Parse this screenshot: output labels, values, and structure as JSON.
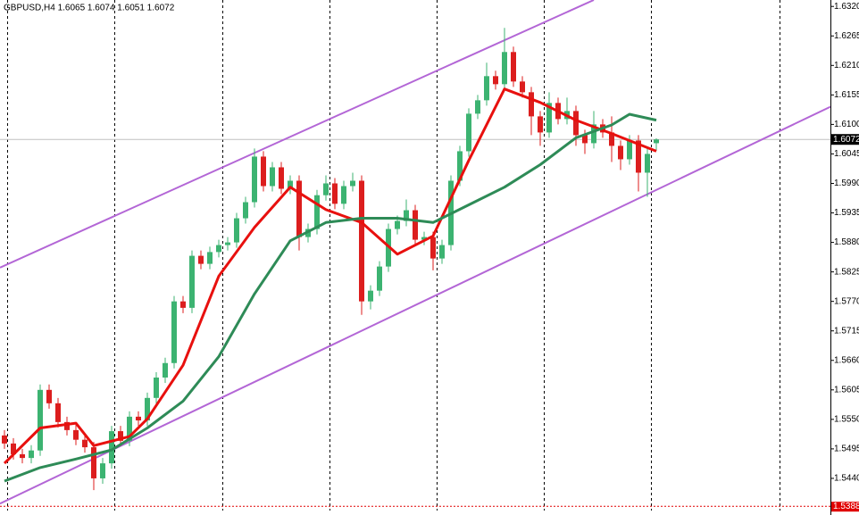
{
  "chart_data": {
    "type": "candlestick",
    "title": "GBPUSD,H4  1.6065 1.6074 1.6051 1.6072",
    "xlim": [
      -0.5,
      92.5
    ],
    "ylim": [
      1.538,
      1.6332
    ],
    "xticks": [
      0.3,
      12.3,
      24.4,
      36.4,
      48.4,
      60.4,
      72.4,
      86.8
    ],
    "yticks": [
      {
        "value": 1.632,
        "label": "1.6320"
      },
      1.6265,
      {
        "value": 1.621,
        "label": "1.6210"
      },
      1.6155,
      {
        "value": 1.61,
        "label": "1.6100"
      },
      1.6045,
      {
        "value": 1.599,
        "label": "1.5990"
      },
      1.5935,
      {
        "value": 1.588,
        "label": "1.5880"
      },
      1.5825,
      {
        "value": 1.577,
        "label": "1.5770"
      },
      1.5715,
      {
        "value": 1.566,
        "label": "1.5660"
      },
      1.5605,
      {
        "value": 1.555,
        "label": "1.5550"
      },
      1.5495,
      {
        "value": 1.544,
        "label": "1.5440"
      }
    ],
    "up_color": "#3cb371",
    "down_color": "#dc1e1e",
    "candles": [
      [
        1.552,
        1.553,
        1.5495,
        1.5505
      ],
      [
        1.5505,
        1.5515,
        1.5475,
        1.5485
      ],
      [
        1.5485,
        1.5495,
        1.5468,
        1.5478
      ],
      [
        1.5478,
        1.5502,
        1.5468,
        1.5492
      ],
      [
        1.5492,
        1.5615,
        1.5482,
        1.5605
      ],
      [
        1.5605,
        1.5615,
        1.557,
        1.558
      ],
      [
        1.558,
        1.559,
        1.5535,
        1.5545
      ],
      [
        1.5545,
        1.5555,
        1.552,
        1.553
      ],
      [
        1.553,
        1.554,
        1.5502,
        1.5512
      ],
      [
        1.5512,
        1.5522,
        1.5488,
        1.5498
      ],
      [
        1.5498,
        1.5508,
        1.5418,
        1.544
      ],
      [
        1.544,
        1.5478,
        1.543,
        1.5468
      ],
      [
        1.5468,
        1.5538,
        1.5458,
        1.5528
      ],
      [
        1.5528,
        1.5538,
        1.55,
        1.551
      ],
      [
        1.551,
        1.5565,
        1.55,
        1.5555
      ],
      [
        1.5555,
        1.5565,
        1.5538,
        1.5548
      ],
      [
        1.5548,
        1.56,
        1.5538,
        1.559
      ],
      [
        1.559,
        1.5638,
        1.558,
        1.5628
      ],
      [
        1.5628,
        1.5665,
        1.5618,
        1.5655
      ],
      [
        1.5655,
        1.578,
        1.5645,
        1.577
      ],
      [
        1.577,
        1.578,
        1.5748,
        1.5758
      ],
      [
        1.5758,
        1.5865,
        1.5748,
        1.5855
      ],
      [
        1.5855,
        1.5865,
        1.583,
        1.584
      ],
      [
        1.584,
        1.5872,
        1.583,
        1.5862
      ],
      [
        1.5862,
        1.5885,
        1.5852,
        1.5875
      ],
      [
        1.5875,
        1.589,
        1.5865,
        1.588
      ],
      [
        1.588,
        1.5935,
        1.587,
        1.5925
      ],
      [
        1.5925,
        1.5965,
        1.5915,
        1.5955
      ],
      [
        1.5955,
        1.6055,
        1.5945,
        1.604
      ],
      [
        1.604,
        1.605,
        1.5975,
        1.5985
      ],
      [
        1.5985,
        1.603,
        1.5975,
        1.602
      ],
      [
        1.602,
        1.603,
        1.597,
        1.598
      ],
      [
        1.598,
        1.6005,
        1.597,
        1.5995
      ],
      [
        1.5995,
        1.6005,
        1.5865,
        1.589
      ],
      [
        1.589,
        1.5915,
        1.588,
        1.5905
      ],
      [
        1.5905,
        1.5978,
        1.5895,
        1.5968
      ],
      [
        1.5968,
        1.6005,
        1.5958,
        1.599
      ],
      [
        1.599,
        1.6,
        1.5942,
        1.5952
      ],
      [
        1.5952,
        1.5995,
        1.5942,
        1.5985
      ],
      [
        1.5985,
        1.601,
        1.5975,
        1.5995
      ],
      [
        1.5995,
        1.6005,
        1.5745,
        1.577
      ],
      [
        1.577,
        1.58,
        1.5755,
        1.579
      ],
      [
        1.579,
        1.5845,
        1.578,
        1.5835
      ],
      [
        1.5835,
        1.5915,
        1.5825,
        1.5905
      ],
      [
        1.5905,
        1.593,
        1.5895,
        1.592
      ],
      [
        1.592,
        1.596,
        1.591,
        1.594
      ],
      [
        1.594,
        1.595,
        1.5875,
        1.5885
      ],
      [
        1.5885,
        1.59,
        1.5875,
        1.589
      ],
      [
        1.589,
        1.59,
        1.5828,
        1.585
      ],
      [
        1.585,
        1.5885,
        1.584,
        1.5875
      ],
      [
        1.5875,
        1.6005,
        1.5865,
        1.5995
      ],
      [
        1.5995,
        1.606,
        1.5985,
        1.605
      ],
      [
        1.605,
        1.613,
        1.604,
        1.612
      ],
      [
        1.612,
        1.6155,
        1.611,
        1.6145
      ],
      [
        1.6145,
        1.6215,
        1.6135,
        1.619
      ],
      [
        1.619,
        1.62,
        1.6165,
        1.6175
      ],
      [
        1.6175,
        1.628,
        1.6165,
        1.6235
      ],
      [
        1.6235,
        1.6245,
        1.617,
        1.618
      ],
      [
        1.618,
        1.619,
        1.615,
        1.616
      ],
      [
        1.616,
        1.617,
        1.608,
        1.6115
      ],
      [
        1.6115,
        1.6125,
        1.606,
        1.6085
      ],
      [
        1.6085,
        1.616,
        1.6075,
        1.614
      ],
      [
        1.614,
        1.615,
        1.61,
        1.611
      ],
      [
        1.611,
        1.615,
        1.61,
        1.6125
      ],
      [
        1.6125,
        1.6135,
        1.606,
        1.608
      ],
      [
        1.608,
        1.609,
        1.6045,
        1.6065
      ],
      [
        1.6065,
        1.6125,
        1.6055,
        1.61
      ],
      [
        1.61,
        1.611,
        1.6075,
        1.6085
      ],
      [
        1.6085,
        1.6115,
        1.603,
        1.606
      ],
      [
        1.606,
        1.607,
        1.6015,
        1.6035
      ],
      [
        1.6035,
        1.608,
        1.6025,
        1.607
      ],
      [
        1.607,
        1.608,
        1.5975,
        1.601
      ],
      [
        1.601,
        1.6055,
        1.5965,
        1.6045
      ],
      [
        1.6065,
        1.6074,
        1.6051,
        1.6072
      ]
    ],
    "moving_averages": [
      {
        "color": "#e8100e",
        "x": [
          0,
          4,
          8,
          10,
          14,
          16,
          20,
          24,
          28,
          32,
          36,
          40,
          44,
          48,
          52,
          56,
          60,
          64,
          68,
          73
        ],
        "values": [
          1.5468,
          1.5534,
          1.5543,
          1.5501,
          1.5518,
          1.5551,
          1.5651,
          1.5817,
          1.5908,
          1.5983,
          1.5941,
          1.5917,
          1.5858,
          1.5892,
          1.6033,
          1.6166,
          1.6141,
          1.6108,
          1.6083,
          1.605
        ]
      },
      {
        "color": "#2e8b57",
        "x": [
          0,
          4,
          8,
          12,
          16,
          20,
          24,
          28,
          32,
          36,
          40,
          44,
          48,
          52,
          56,
          60,
          64,
          68,
          70,
          73
        ],
        "values": [
          1.5435,
          1.546,
          1.5476,
          1.5493,
          1.5534,
          1.5584,
          1.5667,
          1.5784,
          1.5883,
          1.5917,
          1.5925,
          1.5925,
          1.5917,
          1.595,
          1.5983,
          1.6025,
          1.6075,
          1.6099,
          1.6119,
          1.6108
        ]
      }
    ],
    "trend_lines": [
      {
        "color": "#b366d6",
        "x": [
          -0.5,
          66
        ],
        "values": [
          1.5833,
          1.6332
        ]
      },
      {
        "color": "#b366d6",
        "x": [
          -0.5,
          92.5
        ],
        "values": [
          1.5393,
          1.6133
        ]
      }
    ],
    "last_price": 1.6072,
    "alert_price": 1.5388
  }
}
